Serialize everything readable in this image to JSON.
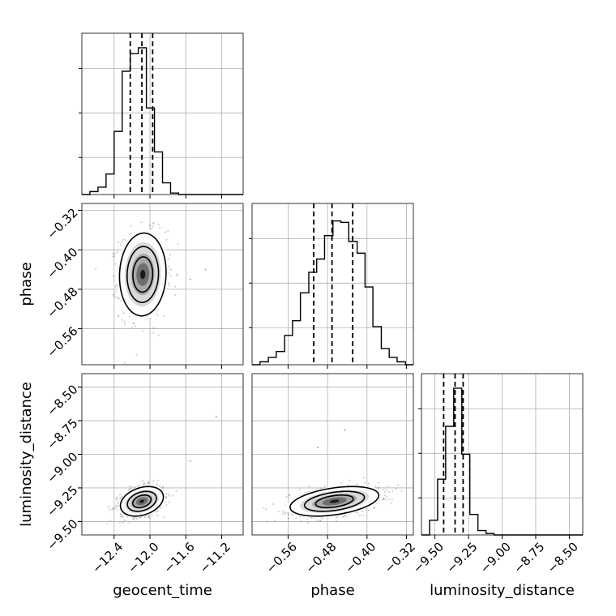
{
  "chart_data": {
    "type": "corner",
    "parameters": [
      "geocent_time",
      "phase",
      "luminosity_distance"
    ],
    "ranges": {
      "geocent_time": [
        -12.76,
        -10.96
      ],
      "phase": [
        -0.633,
        -0.306
      ],
      "luminosity_distance": [
        -9.6,
        -8.4
      ]
    },
    "ticks": {
      "geocent_time": [
        -12.4,
        -12.0,
        -11.6,
        -11.2
      ],
      "phase": [
        -0.56,
        -0.48,
        -0.4,
        -0.32
      ],
      "luminosity_distance": [
        -9.5,
        -9.25,
        -9.0,
        -8.75,
        -8.5
      ]
    },
    "tick_labels": {
      "geocent_time": [
        "−12.4",
        "−12.0",
        "−11.6",
        "−11.2"
      ],
      "phase": [
        "−0.56",
        "−0.48",
        "−0.40",
        "−0.32"
      ],
      "luminosity_distance": [
        "−9.50",
        "−9.25",
        "−9.00",
        "−8.75",
        "−8.50"
      ]
    },
    "histograms": [
      {
        "parameter": "geocent_time",
        "bin_edges": [
          -12.76,
          -12.67,
          -12.58,
          -12.49,
          -12.4,
          -12.31,
          -12.22,
          -12.13,
          -12.04,
          -11.95,
          -11.86,
          -11.77,
          -11.68,
          -11.59,
          -11.5,
          -11.41,
          -11.32,
          -11.23,
          -11.14,
          -11.05,
          -10.96
        ],
        "heights": [
          0,
          0.02,
          0.05,
          0.14,
          0.43,
          0.84,
          0.96,
          1.0,
          0.59,
          0.29,
          0.08,
          0.01,
          0,
          0,
          0,
          0,
          0,
          0,
          0,
          0
        ],
        "quantiles": [
          -12.22,
          -12.09,
          -11.97
        ]
      },
      {
        "parameter": "phase",
        "bin_edges": [
          -0.633,
          -0.617,
          -0.6,
          -0.584,
          -0.567,
          -0.551,
          -0.535,
          -0.518,
          -0.502,
          -0.486,
          -0.469,
          -0.453,
          -0.437,
          -0.42,
          -0.404,
          -0.388,
          -0.371,
          -0.355,
          -0.339,
          -0.322,
          -0.306
        ],
        "heights": [
          0,
          0.02,
          0.05,
          0.09,
          0.2,
          0.3,
          0.49,
          0.63,
          0.72,
          0.88,
          0.98,
          0.97,
          0.84,
          0.76,
          0.53,
          0.26,
          0.11,
          0.05,
          0.02,
          0
        ],
        "quantiles": [
          -0.508,
          -0.471,
          -0.429
        ]
      },
      {
        "parameter": "luminosity_distance",
        "bin_edges": [
          -9.6,
          -9.54,
          -9.48,
          -9.42,
          -9.36,
          -9.3,
          -9.24,
          -9.18,
          -9.12,
          -9.06,
          -9.0,
          -8.94,
          -8.88,
          -8.82,
          -8.76,
          -8.7,
          -8.64,
          -8.58,
          -8.52,
          -8.46,
          -8.4
        ],
        "heights": [
          0,
          0.1,
          0.38,
          0.74,
          1.0,
          0.55,
          0.14,
          0.03,
          0.01,
          0,
          0,
          0,
          0,
          0,
          0,
          0,
          0,
          0,
          0,
          0
        ],
        "quantiles": [
          -9.435,
          -9.35,
          -9.29
        ]
      }
    ],
    "pairs": [
      {
        "x": "geocent_time",
        "y": "phase",
        "mean": [
          -12.08,
          -0.45
        ],
        "sd": [
          0.13,
          0.042
        ],
        "corr": 0.05,
        "outliers": [
          [
            -11.55,
            -0.46
          ],
          [
            -11.38,
            -0.44
          ]
        ]
      },
      {
        "x": "geocent_time",
        "y": "luminosity_distance",
        "mean": [
          -12.09,
          -9.35
        ],
        "sd": [
          0.12,
          0.055
        ],
        "corr": 0.3,
        "outliers": [
          [
            -11.55,
            -9.05
          ],
          [
            -11.26,
            -8.72
          ]
        ]
      },
      {
        "x": "phase",
        "y": "luminosity_distance",
        "mean": [
          -0.466,
          -9.35
        ],
        "sd": [
          0.045,
          0.055
        ],
        "corr": 0.4,
        "outliers": [
          [
            -0.445,
            -8.82
          ],
          [
            -0.5,
            -8.95
          ]
        ]
      }
    ],
    "grid": true,
    "legend": "none"
  }
}
